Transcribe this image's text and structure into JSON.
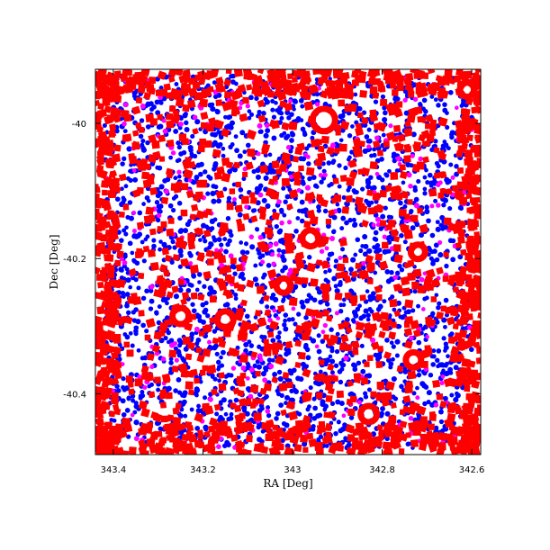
{
  "chart_data": {
    "type": "scatter",
    "title": "",
    "xlabel": "RA [Deg]",
    "ylabel": "Dec [Deg]",
    "xlim": [
      343.44,
      342.58
    ],
    "ylim": [
      -40.49,
      -39.92
    ],
    "x_inverted": true,
    "x_ticks": [
      {
        "value": 343.4,
        "label": "343.4"
      },
      {
        "value": 343.2,
        "label": "343.2"
      },
      {
        "value": 343.0,
        "label": "343"
      },
      {
        "value": 342.8,
        "label": "342.8"
      },
      {
        "value": 342.6,
        "label": "342.6"
      }
    ],
    "y_ticks": [
      {
        "value": -40.0,
        "label": "-40"
      },
      {
        "value": -40.2,
        "label": "-40.2"
      },
      {
        "value": -40.4,
        "label": "-40.4"
      }
    ],
    "grid": false,
    "legend": "none",
    "series": [
      {
        "color": "#0000ff",
        "marker": "point",
        "approx_count": 2600,
        "x_range": [
          343.42,
          342.6
        ],
        "y_range": [
          -40.48,
          -39.93
        ]
      },
      {
        "color": "#ff00ff",
        "marker": "point",
        "approx_count": 300,
        "x_range": [
          343.42,
          342.6
        ],
        "y_range": [
          -40.48,
          -39.93
        ]
      },
      {
        "color": "#ff0000",
        "marker": "square",
        "approx_count": 2200,
        "x_range": [
          343.44,
          342.58
        ],
        "y_range": [
          -40.49,
          -39.92
        ]
      }
    ],
    "masked_regions": [
      {
        "ra": 342.93,
        "dec": -39.995,
        "radius_deg": 0.017
      },
      {
        "ra": 342.61,
        "dec": -39.95,
        "radius_deg": 0.008
      },
      {
        "ra": 343.25,
        "dec": -40.285,
        "radius_deg": 0.01
      },
      {
        "ra": 343.15,
        "dec": -40.29,
        "radius_deg": 0.01
      },
      {
        "ra": 343.02,
        "dec": -40.24,
        "radius_deg": 0.008
      },
      {
        "ra": 342.96,
        "dec": -40.17,
        "radius_deg": 0.01
      },
      {
        "ra": 342.73,
        "dec": -40.35,
        "radius_deg": 0.009
      },
      {
        "ra": 342.83,
        "dec": -40.43,
        "radius_deg": 0.01
      },
      {
        "ra": 342.72,
        "dec": -40.19,
        "radius_deg": 0.008
      }
    ]
  }
}
